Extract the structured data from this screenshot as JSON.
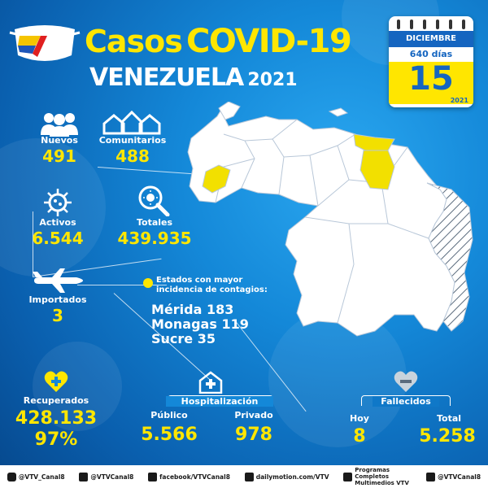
{
  "header": {
    "casos": "Casos",
    "covid": "COVID-19",
    "pais": "VENEZUELA",
    "anio": "2021"
  },
  "calendar": {
    "month": "DICIEMBRE",
    "days": "640 días",
    "day": "15",
    "year": "2021"
  },
  "stats": {
    "nuevos": {
      "label": "Nuevos",
      "value": "491"
    },
    "comunitarios": {
      "label": "Comunitarios",
      "value": "488"
    },
    "activos": {
      "label": "Activos",
      "value": "6.544"
    },
    "totales": {
      "label": "Totales",
      "value": "439.935"
    },
    "importados": {
      "label": "Importados",
      "value": "3"
    },
    "recuperados": {
      "label": "Recuperados",
      "value": "428.133",
      "percent": "97%"
    }
  },
  "incidence": {
    "title_line1": "Estados con mayor",
    "title_line2": "incidencia de contagios:",
    "states": [
      "Mérida 183",
      "Monagas 119",
      "Sucre 35"
    ]
  },
  "hospitalizacion": {
    "title": "Hospitalización",
    "publico_label": "Público",
    "publico_value": "5.566",
    "privado_label": "Privado",
    "privado_value": "978"
  },
  "fallecidos": {
    "title": "Fallecidos",
    "hoy_label": "Hoy",
    "hoy_value": "8",
    "total_label": "Total",
    "total_value": "5.258"
  },
  "footer": [
    {
      "icon": "instagram-icon",
      "text": "@VTV_Canal8"
    },
    {
      "icon": "twitter-icon",
      "text": "@VTVCanal8"
    },
    {
      "icon": "facebook-icon",
      "text": "facebook/VTVCanal8"
    },
    {
      "icon": "dailymotion-icon",
      "text": "dailymotion.com/VTV"
    },
    {
      "icon": "youtube-icon",
      "text": "Programas Completos Multimedios VTV"
    },
    {
      "icon": "tiktok-icon",
      "text": "@VTVCanal8"
    }
  ],
  "colors": {
    "accent_yellow": "#ffe600",
    "background_blue": "#1488d8",
    "highlight_state": "#f2e000"
  }
}
